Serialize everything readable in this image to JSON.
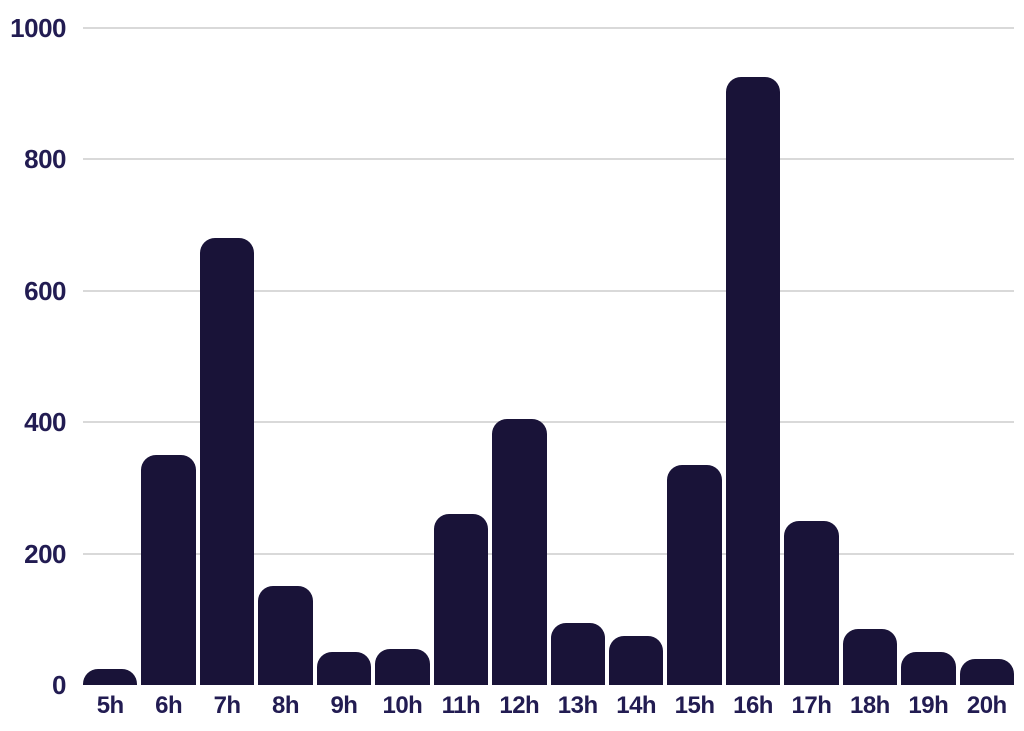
{
  "chart_data": {
    "type": "bar",
    "categories": [
      "5h",
      "6h",
      "7h",
      "8h",
      "9h",
      "10h",
      "11h",
      "12h",
      "13h",
      "14h",
      "15h",
      "16h",
      "17h",
      "18h",
      "19h",
      "20h"
    ],
    "values": [
      25,
      350,
      680,
      150,
      50,
      55,
      260,
      405,
      95,
      75,
      335,
      925,
      250,
      85,
      50,
      40
    ],
    "title": "",
    "xlabel": "",
    "ylabel": "",
    "ylim": [
      0,
      1000
    ],
    "yticks": [
      0,
      200,
      400,
      600,
      800,
      1000
    ],
    "grid": true,
    "legend": "none",
    "bar_color": "#191338",
    "label_color": "#221c52",
    "gridline_color": "#d9d9d9",
    "background_color": "#ffffff"
  }
}
